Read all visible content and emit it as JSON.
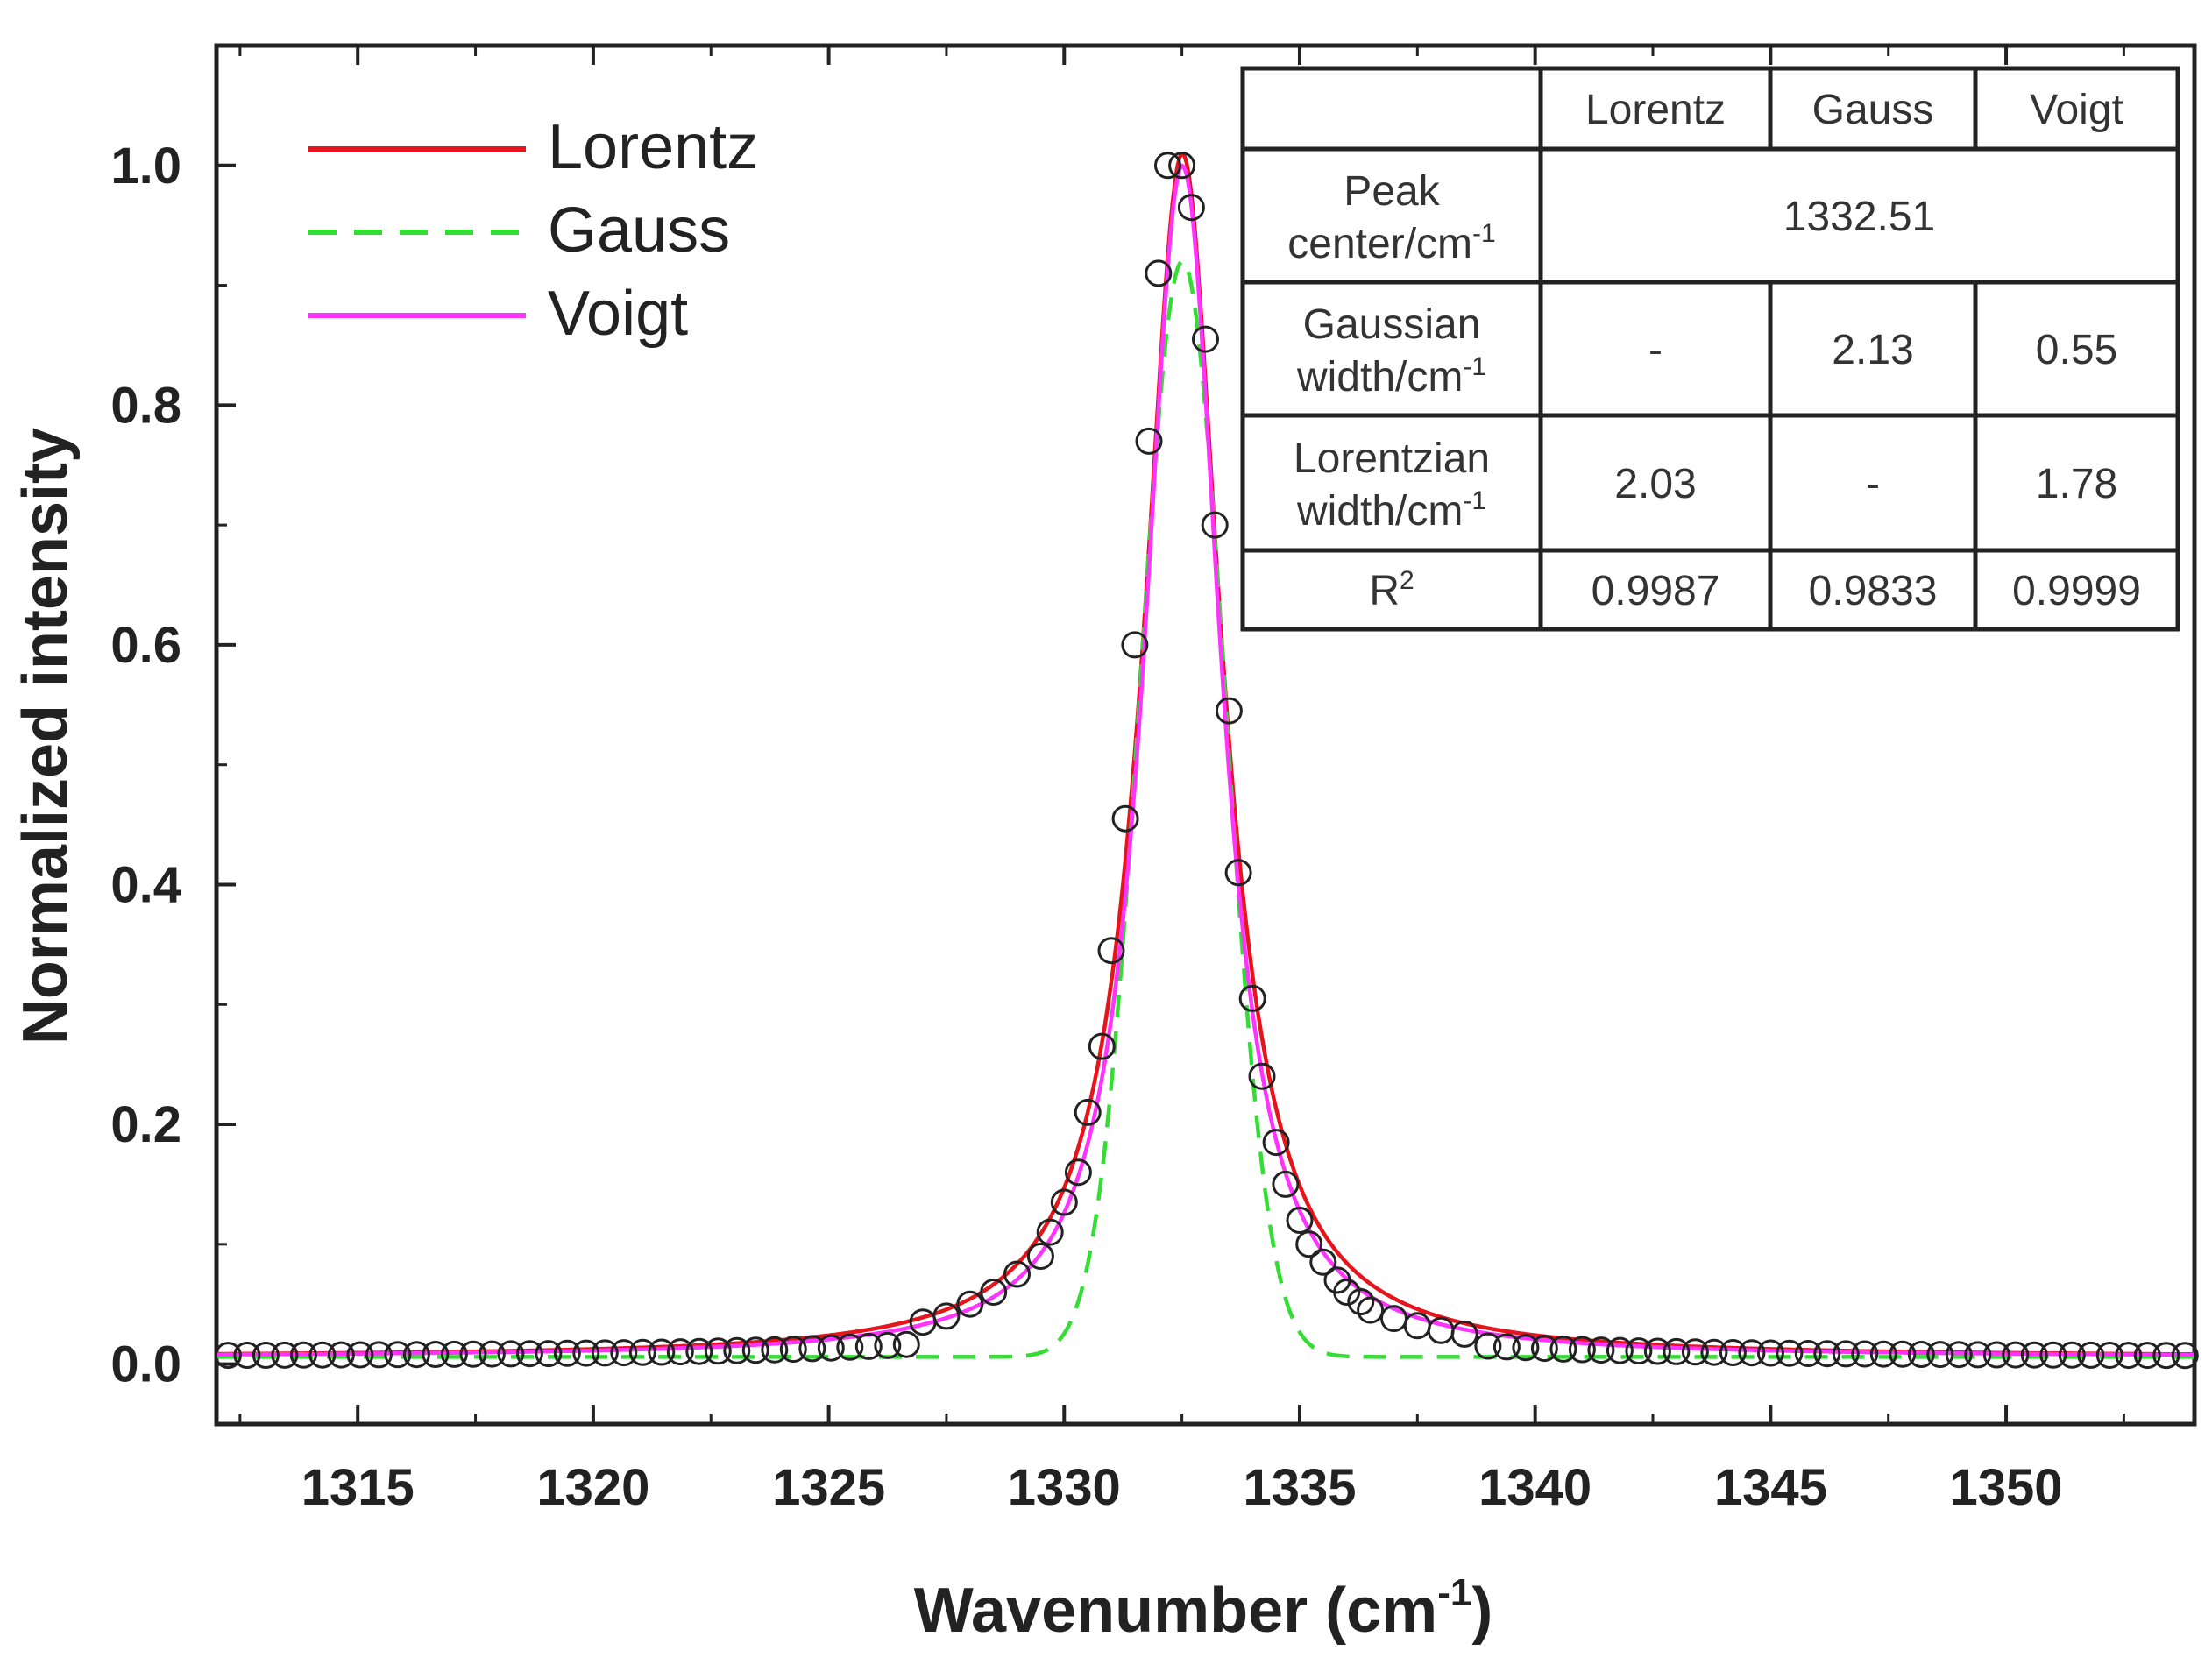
{
  "chart_data": {
    "type": "line",
    "title": "",
    "xlabel": "Wavenumber (cm",
    "xlabel_sup": "-1",
    "xlabel_close": ")",
    "ylabel": "Normalized intensity",
    "xlim": [
      1312,
      1354
    ],
    "ylim": [
      -0.05,
      1.1
    ],
    "x_ticks": [
      1315,
      1320,
      1325,
      1330,
      1335,
      1340,
      1345,
      1350
    ],
    "y_ticks": [
      0.0,
      0.2,
      0.4,
      0.6,
      0.8,
      1.0
    ],
    "x_tick_labels": [
      "1315",
      "1320",
      "1325",
      "1330",
      "1335",
      "1340",
      "1345",
      "1350"
    ],
    "y_tick_labels": [
      "0.0",
      "0.2",
      "0.4",
      "0.6",
      "0.8",
      "1.0"
    ],
    "baseline": 0.006,
    "data_points": {
      "name": "Measured data",
      "marker": "open-circle",
      "x": [
        1327.0,
        1327.5,
        1328.0,
        1328.5,
        1329.0,
        1329.5,
        1329.7,
        1330.0,
        1330.3,
        1330.5,
        1330.8,
        1331.0,
        1331.3,
        1331.5,
        1331.8,
        1332.0,
        1332.2,
        1332.5,
        1332.7,
        1333.0,
        1333.2,
        1333.5,
        1333.7,
        1334.0,
        1334.2,
        1334.5,
        1334.7,
        1335.0,
        1335.2,
        1335.5,
        1335.8,
        1336.0,
        1336.3,
        1336.5,
        1337.0,
        1337.5,
        1338.0,
        1338.5
      ],
      "y": [
        0.035,
        0.04,
        0.05,
        0.06,
        0.075,
        0.09,
        0.11,
        0.135,
        0.16,
        0.21,
        0.265,
        0.345,
        0.455,
        0.6,
        0.77,
        0.91,
        1.0,
        1.0,
        0.965,
        0.855,
        0.7,
        0.545,
        0.41,
        0.305,
        0.24,
        0.185,
        0.15,
        0.12,
        0.1,
        0.085,
        0.07,
        0.06,
        0.052,
        0.045,
        0.038,
        0.032,
        0.028,
        0.025
      ]
    },
    "series": [
      {
        "name": "Lorentz",
        "color": "#e8141c",
        "dash": "solid",
        "model": "lorentz",
        "center": 1332.51,
        "lorentzian_width": 2.03,
        "amplitude": 1.01
      },
      {
        "name": "Gauss",
        "color": "#33dd33",
        "dash": "dashed",
        "model": "gauss",
        "center": 1332.51,
        "gaussian_width": 2.13,
        "amplitude": 0.92
      },
      {
        "name": "Voigt",
        "color": "#ff33ff",
        "dash": "solid",
        "model": "voigt",
        "center": 1332.51,
        "gaussian_width": 0.55,
        "lorentzian_width": 1.78,
        "amplitude": 1.0
      }
    ],
    "legend": {
      "position": "top-left",
      "entries": [
        {
          "label": "Lorentz",
          "color": "#e8141c",
          "dash": "solid"
        },
        {
          "label": "Gauss",
          "color": "#33dd33",
          "dash": "dashed"
        },
        {
          "label": "Voigt",
          "color": "#ff33ff",
          "dash": "solid"
        }
      ]
    },
    "inset_table": {
      "position": "top-right",
      "header": [
        "",
        "Lorentz",
        "Gauss",
        "Voigt"
      ],
      "rows": [
        {
          "label": [
            "Peak",
            "center/cm"
          ],
          "sup": "-1",
          "cells": [
            "1332.51"
          ],
          "merged": true
        },
        {
          "label": [
            "Gaussian",
            "width/cm"
          ],
          "sup": "-1",
          "cells": [
            "-",
            "2.13",
            "0.55"
          ]
        },
        {
          "label": [
            "Lorentzian",
            "width/cm"
          ],
          "sup": "-1",
          "cells": [
            "2.03",
            "-",
            "1.78"
          ]
        },
        {
          "label": [
            "R"
          ],
          "sup": "2",
          "cells": [
            "0.9987",
            "0.9833",
            "0.9999"
          ]
        }
      ]
    }
  }
}
